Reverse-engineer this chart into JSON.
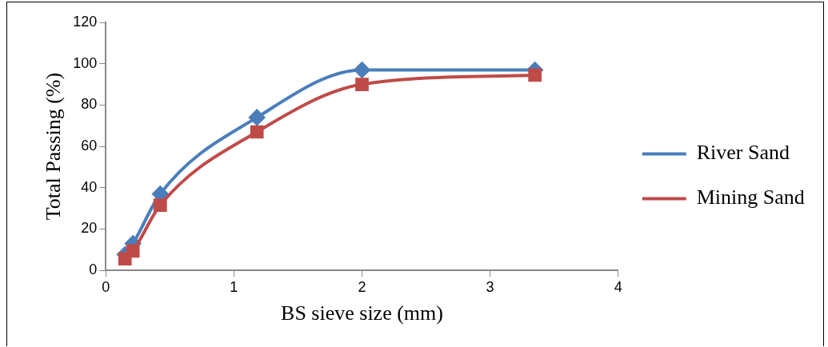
{
  "chart_data": {
    "type": "line",
    "xlabel": "BS sieve size (mm)",
    "ylabel": "Total Passing (%)",
    "xlim": [
      0,
      4
    ],
    "xticks": [
      0,
      1,
      2,
      3,
      4
    ],
    "ylim": [
      0,
      120
    ],
    "yticks": [
      0,
      20,
      40,
      60,
      80,
      100,
      120
    ],
    "legend": "right",
    "grid": false,
    "x": [
      0.15,
      0.212,
      0.425,
      1.18,
      2.0,
      3.35
    ],
    "series": [
      {
        "name": "River Sand",
        "color": "#4a7ebb",
        "marker": "diamond",
        "values": [
          7.7,
          13,
          37,
          74,
          97,
          97
        ]
      },
      {
        "name": "Mining Sand",
        "color": "#be4b48",
        "marker": "square",
        "values": [
          5.6,
          9.4,
          31.6,
          67,
          90,
          94.5
        ]
      }
    ]
  }
}
